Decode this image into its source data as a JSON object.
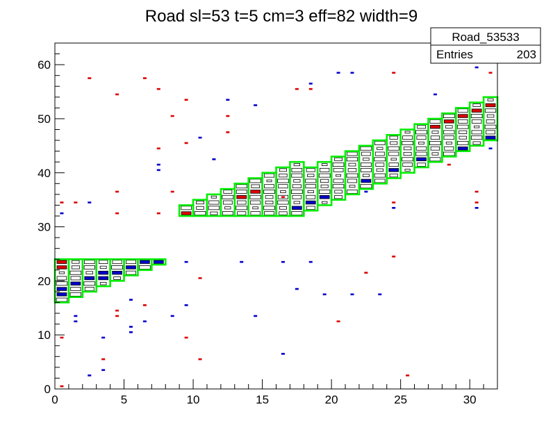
{
  "chart_data": {
    "type": "heatmap",
    "title": "Road sl=53 t=5 cm=3 eff=82 width=9",
    "xlabel": "",
    "ylabel": "",
    "xlim": [
      0,
      32
    ],
    "ylim": [
      0,
      64
    ],
    "x_ticks": [
      "0",
      "5",
      "10",
      "15",
      "20",
      "25",
      "30"
    ],
    "y_ticks": [
      "0",
      "10",
      "20",
      "30",
      "40",
      "50",
      "60"
    ],
    "grid": false,
    "stats_box": {
      "name": "Road_53533",
      "entries_label": "Entries",
      "entries_value": "203"
    },
    "colors": {
      "frame": "#000000",
      "road": "#00ee00",
      "red": "#dd0000",
      "blue": "#0000cc",
      "white": "#ffffff"
    },
    "road_segments": [
      {
        "bin_range": [
          0,
          7
        ],
        "y_top": 24,
        "y_bottom_start": 16,
        "y_bottom_step": 1
      },
      {
        "bin_range": [
          9,
          17
        ],
        "y_top_start": 34,
        "y_top_step": 1,
        "y_bottom": 32
      },
      {
        "bin_range": [
          18,
          31
        ],
        "y_top_start": 41,
        "y_top_step": 1,
        "y_bottom_start": 33,
        "y_bottom_step": 1
      }
    ],
    "scatter_red": [
      [
        0,
        0
      ],
      [
        0,
        9
      ],
      [
        0,
        34
      ],
      [
        1,
        34
      ],
      [
        2,
        57
      ],
      [
        3,
        5
      ],
      [
        4,
        13
      ],
      [
        4,
        14
      ],
      [
        4,
        32
      ],
      [
        4,
        36
      ],
      [
        4,
        54
      ],
      [
        6,
        15
      ],
      [
        6,
        57
      ],
      [
        7,
        32
      ],
      [
        7,
        44
      ],
      [
        7,
        55
      ],
      [
        8,
        36
      ],
      [
        8,
        50
      ],
      [
        9,
        9
      ],
      [
        9,
        45
      ],
      [
        9,
        53
      ],
      [
        10,
        5
      ],
      [
        10,
        20
      ],
      [
        12,
        47
      ],
      [
        12,
        50
      ],
      [
        16,
        35
      ],
      [
        17,
        55
      ],
      [
        18,
        55
      ],
      [
        20,
        12
      ],
      [
        22,
        21
      ],
      [
        24,
        24
      ],
      [
        24,
        34
      ],
      [
        24,
        58
      ],
      [
        25,
        2
      ],
      [
        28,
        41
      ],
      [
        30,
        34
      ],
      [
        30,
        36
      ],
      [
        31,
        58
      ]
    ],
    "scatter_blue": [
      [
        0,
        32
      ],
      [
        1,
        12
      ],
      [
        1,
        13
      ],
      [
        2,
        2
      ],
      [
        2,
        34
      ],
      [
        3,
        3
      ],
      [
        3,
        9
      ],
      [
        5,
        10
      ],
      [
        5,
        11
      ],
      [
        5,
        16
      ],
      [
        6,
        12
      ],
      [
        7,
        40
      ],
      [
        7,
        41
      ],
      [
        8,
        13
      ],
      [
        9,
        15
      ],
      [
        9,
        23
      ],
      [
        10,
        46
      ],
      [
        11,
        42
      ],
      [
        12,
        53
      ],
      [
        13,
        23
      ],
      [
        14,
        13
      ],
      [
        14,
        52
      ],
      [
        16,
        6
      ],
      [
        16,
        23
      ],
      [
        17,
        18
      ],
      [
        18,
        23
      ],
      [
        18,
        56
      ],
      [
        19,
        17
      ],
      [
        20,
        58
      ],
      [
        21,
        17
      ],
      [
        21,
        58
      ],
      [
        22,
        36
      ],
      [
        23,
        17
      ],
      [
        24,
        33
      ],
      [
        27,
        54
      ],
      [
        30,
        33
      ],
      [
        30,
        59
      ],
      [
        31,
        44
      ]
    ],
    "red_cells": [
      [
        0,
        23
      ],
      [
        0,
        22
      ],
      [
        9,
        32
      ],
      [
        13,
        35
      ],
      [
        14,
        36
      ],
      [
        27,
        48
      ],
      [
        28,
        49
      ],
      [
        29,
        50
      ],
      [
        30,
        51
      ],
      [
        31,
        52
      ]
    ],
    "blue_cells": [
      [
        0,
        17
      ],
      [
        0,
        18
      ],
      [
        1,
        19
      ],
      [
        2,
        20
      ],
      [
        3,
        20
      ],
      [
        3,
        21
      ],
      [
        4,
        21
      ],
      [
        5,
        22
      ],
      [
        6,
        23
      ],
      [
        7,
        23
      ],
      [
        17,
        33
      ],
      [
        18,
        34
      ],
      [
        19,
        35
      ],
      [
        22,
        38
      ],
      [
        24,
        40
      ],
      [
        26,
        42
      ],
      [
        29,
        44
      ],
      [
        31,
        46
      ]
    ]
  }
}
